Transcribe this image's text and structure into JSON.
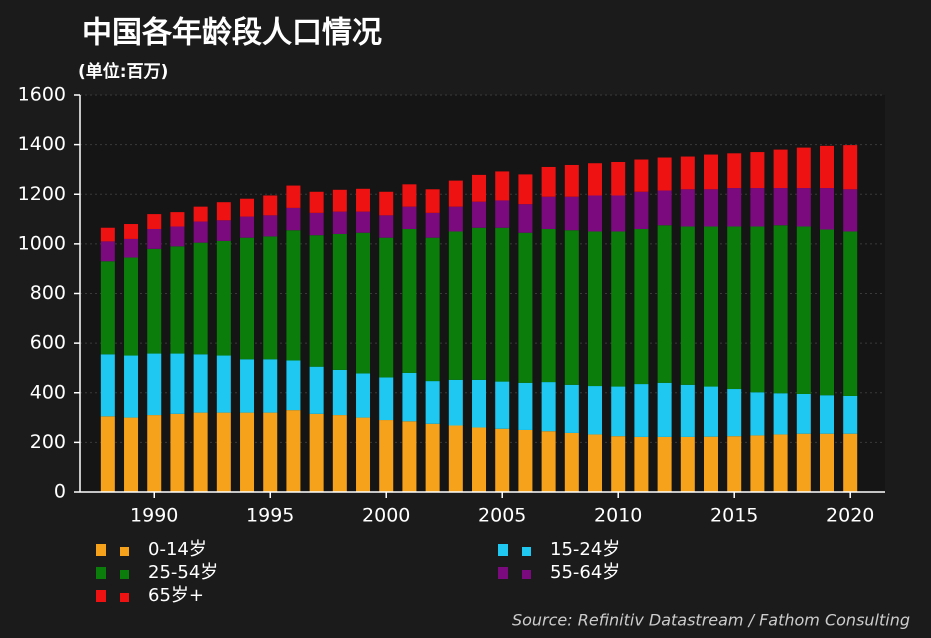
{
  "chart_data": {
    "type": "stacked_bar",
    "title": "中国各年龄段人口情况",
    "subtitle": "(单位:百万)",
    "source": "Source: Refinitiv Datastream / Fathom Consulting",
    "x": [
      1988,
      1989,
      1990,
      1991,
      1992,
      1993,
      1994,
      1995,
      1996,
      1997,
      1998,
      1999,
      2000,
      2001,
      2002,
      2003,
      2004,
      2005,
      2006,
      2007,
      2008,
      2009,
      2010,
      2011,
      2012,
      2013,
      2014,
      2015,
      2016,
      2017,
      2018,
      2019,
      2020
    ],
    "series": [
      {
        "name": "0-14岁",
        "color": "#f7a21b",
        "values": [
          305,
          300,
          310,
          315,
          320,
          320,
          320,
          320,
          330,
          315,
          310,
          300,
          290,
          285,
          275,
          268,
          260,
          255,
          250,
          245,
          238,
          232,
          225,
          222,
          222,
          222,
          223,
          225,
          228,
          232,
          235,
          235,
          235
        ]
      },
      {
        "name": "15-24岁",
        "color": "#1ec8f0",
        "values": [
          250,
          250,
          248,
          243,
          235,
          230,
          215,
          215,
          200,
          190,
          182,
          178,
          172,
          195,
          172,
          184,
          192,
          190,
          190,
          198,
          194,
          195,
          200,
          213,
          218,
          210,
          202,
          190,
          174,
          166,
          160,
          155,
          152
        ]
      },
      {
        "name": "25-54岁",
        "color": "#0b7d0b",
        "values": [
          375,
          395,
          422,
          432,
          450,
          462,
          490,
          495,
          525,
          530,
          548,
          567,
          563,
          580,
          578,
          598,
          613,
          620,
          605,
          617,
          623,
          623,
          625,
          625,
          635,
          638,
          645,
          655,
          668,
          677,
          675,
          668,
          663
        ]
      },
      {
        "name": "55-64岁",
        "color": "#7a0a7e",
        "values": [
          80,
          75,
          80,
          80,
          85,
          83,
          85,
          85,
          90,
          90,
          90,
          85,
          90,
          90,
          100,
          100,
          105,
          110,
          115,
          130,
          135,
          145,
          145,
          150,
          140,
          150,
          150,
          155,
          155,
          150,
          155,
          167,
          170
        ]
      },
      {
        "name": "65岁+",
        "color": "#ee1212",
        "values": [
          55,
          60,
          60,
          58,
          60,
          73,
          72,
          80,
          90,
          85,
          88,
          92,
          95,
          90,
          95,
          105,
          108,
          117,
          120,
          120,
          128,
          130,
          135,
          130,
          133,
          132,
          140,
          140,
          145,
          155,
          163,
          170,
          178
        ]
      }
    ],
    "xlim": [
      1986.8,
      2021.5
    ],
    "xticks": [
      1990,
      1995,
      2000,
      2005,
      2010,
      2015,
      2020
    ],
    "ylim": [
      0,
      1600
    ],
    "yticks": [
      0,
      200,
      400,
      600,
      800,
      1000,
      1200,
      1400,
      1600
    ],
    "grid": true
  }
}
